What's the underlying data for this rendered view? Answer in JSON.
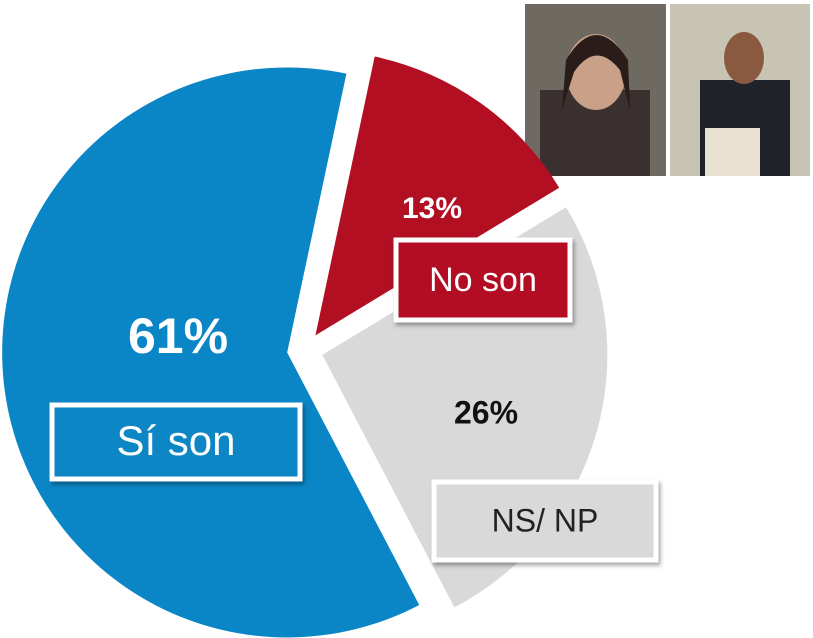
{
  "chart_data": {
    "type": "pie",
    "categories": [
      "Sí son",
      "No son",
      "NS/ NP"
    ],
    "values": [
      61,
      13,
      26
    ],
    "value_labels": [
      "61%",
      "13%",
      "26%"
    ],
    "colors": [
      "#0a86c6",
      "#b20f22",
      "#d9d9d9"
    ]
  }
}
